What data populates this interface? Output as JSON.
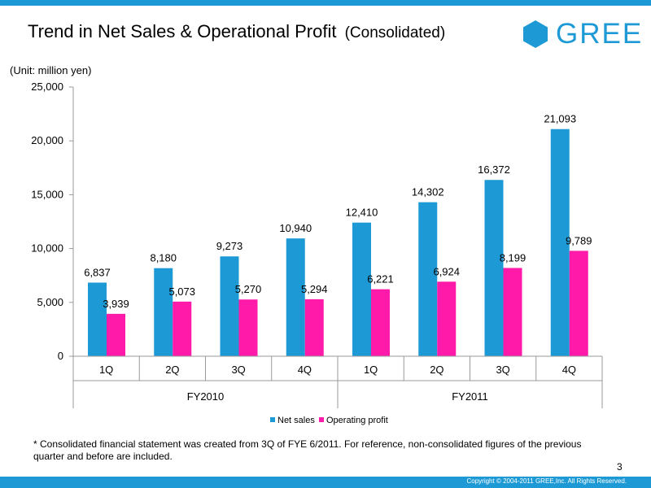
{
  "header": {
    "title": "Trend in Net Sales & Operational Profit",
    "title_suffix": "(Consolidated)",
    "logo_text": "GREE",
    "logo_icon": "hexagon-icon"
  },
  "colors": {
    "accent": "#1d9ad6",
    "net_sales": "#1d9ad6",
    "operating_profit": "#ff1aa9"
  },
  "chart_data": {
    "type": "bar",
    "unit_label": "(Unit: million yen)",
    "ylim": [
      0,
      25000
    ],
    "yticks": [
      "25,000",
      "20,000",
      "15,000",
      "10,000",
      "5,000",
      "0"
    ],
    "ytick_values": [
      25000,
      20000,
      15000,
      10000,
      5000,
      0
    ],
    "categories": [
      "1Q",
      "2Q",
      "3Q",
      "4Q",
      "1Q",
      "2Q",
      "3Q",
      "4Q"
    ],
    "groups": [
      {
        "label": "FY2010",
        "count": 4
      },
      {
        "label": "FY2011",
        "count": 4
      }
    ],
    "series": [
      {
        "name": "Net sales",
        "values": [
          6837,
          8180,
          9273,
          10940,
          12410,
          14302,
          16372,
          21093
        ],
        "labels": [
          "6,837",
          "8,180",
          "9,273",
          "10,940",
          "12,410",
          "14,302",
          "16,372",
          "21,093"
        ]
      },
      {
        "name": "Operating profit",
        "values": [
          3939,
          5073,
          5270,
          5294,
          6221,
          6924,
          8199,
          9789
        ],
        "labels": [
          "3,939",
          "5,073",
          "5,270",
          "5,294",
          "6,221",
          "6,924",
          "8,199",
          "9,789"
        ]
      }
    ],
    "legend_position": "bottom-center"
  },
  "footnote": "* Consolidated financial statement was created from 3Q of FYE 6/2011. For reference, non-consolidated figures of the previous quarter and before are included.",
  "page_number": "3",
  "copyright": "Copyright © 2004-2011 GREE,Inc. All Rights Reserved."
}
